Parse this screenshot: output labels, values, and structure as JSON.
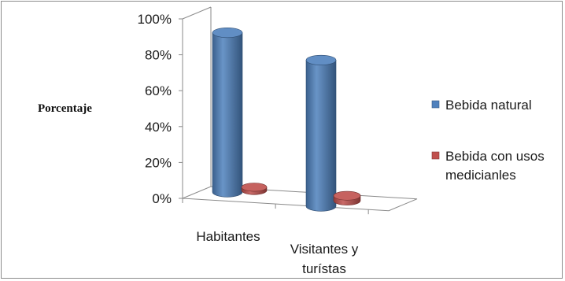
{
  "chart_data": {
    "type": "bar",
    "style": "3d-cylinder",
    "categories": [
      "Habitantes",
      "Visitantes y turístas"
    ],
    "category_lines": [
      [
        "Habitantes"
      ],
      [
        "Visitantes y",
        "turístas"
      ]
    ],
    "series": [
      {
        "name": "Bebida natural",
        "name_lines": [
          "Bebida natural"
        ],
        "values": [
          96,
          88
        ],
        "color": "#4f81bd"
      },
      {
        "name": "Bebida con usos medicianles",
        "name_lines": [
          "Bebida con usos",
          "medicianles"
        ],
        "values": [
          2,
          3
        ],
        "color": "#c0504d"
      }
    ],
    "y_ticks": [
      "0%",
      "20%",
      "40%",
      "60%",
      "80%",
      "100%"
    ],
    "ylim": [
      0,
      100
    ],
    "ylabel": "Porcentaje",
    "legend_position": "right",
    "grid": false
  }
}
